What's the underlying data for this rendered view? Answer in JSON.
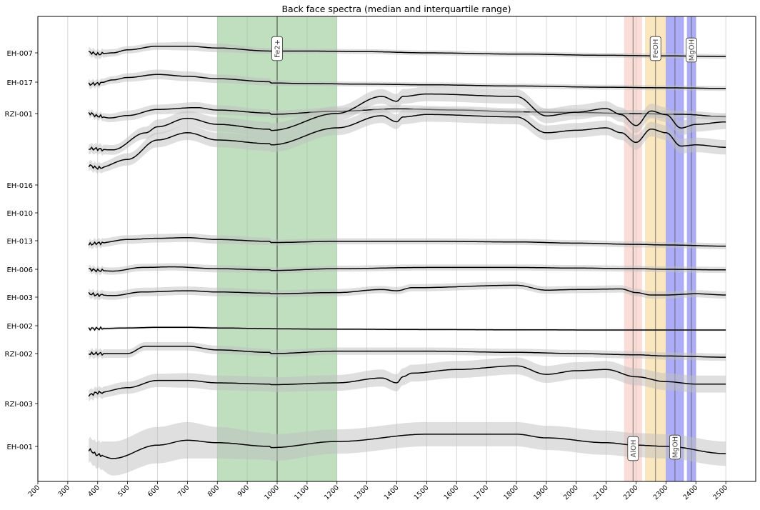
{
  "chart_data": {
    "type": "line",
    "title": "Back face spectra (median and interquartile range)",
    "xlabel": "",
    "ylabel": "",
    "xlim": [
      200,
      2600
    ],
    "xticks": [
      200,
      300,
      400,
      500,
      600,
      700,
      800,
      900,
      1000,
      1100,
      1200,
      1300,
      1400,
      1500,
      1600,
      1700,
      1800,
      1900,
      2000,
      2100,
      2200,
      2300,
      2400,
      2500
    ],
    "grid": "vertical",
    "colors": {
      "median": "#000000",
      "iqr_band": "#bfbfbf",
      "fe2_band": "#7fbf7f",
      "aloh_band": "#f7b3a8",
      "feoh_band": "#f7cf80",
      "mgoh_band": "#5a5af0"
    },
    "bands": [
      {
        "label": "Fe2+",
        "x0": 800,
        "x1": 1200,
        "line": 1000,
        "color": "#7fbf7f"
      },
      {
        "label": "AlOH",
        "x0": 2160,
        "x1": 2220,
        "line": 2190,
        "color": "#f7b3a8"
      },
      {
        "label": "FeOH",
        "x0": 2230,
        "x1": 2300,
        "line": 2265,
        "color": "#f7cf80"
      },
      {
        "label": "MgOH",
        "x0": 2300,
        "x1": 2360,
        "line": 2330,
        "color": "#5a5af0"
      },
      {
        "label": "MgOH",
        "x0": 2370,
        "x1": 2400,
        "line": 2385,
        "color": "#5a5af0"
      }
    ],
    "y_labels": [
      "EH-007",
      "EH-017",
      "RZI-001",
      "EH-016",
      "EH-010",
      "EH-013",
      "EH-006",
      "EH-003",
      "EH-002",
      "RZI-002",
      "RZI-003",
      "EH-001"
    ],
    "series": [
      {
        "name": "EH-007",
        "x": [
          370,
          400,
          450,
          500,
          600,
          700,
          800,
          975,
          980,
          1100,
          1300,
          1500,
          1800,
          2100,
          2300,
          2500
        ],
        "y": [
          0.05,
          -0.1,
          0.0,
          0.25,
          0.55,
          0.55,
          0.4,
          0.15,
          0.15,
          0.15,
          0.1,
          0.0,
          -0.1,
          -0.2,
          -0.25,
          -0.3
        ],
        "iqr": [
          0.35,
          0.35,
          0.3,
          0.3,
          0.3,
          0.35,
          0.35,
          0.25,
          0.25,
          0.2,
          0.2,
          0.2,
          0.2,
          0.2,
          0.2,
          0.2
        ]
      },
      {
        "name": "EH-017",
        "x": [
          370,
          400,
          450,
          500,
          600,
          700,
          800,
          975,
          980,
          1100,
          1300,
          1500,
          1800,
          2100,
          2300,
          2500
        ],
        "y": [
          -0.05,
          0.0,
          0.3,
          0.5,
          0.75,
          0.6,
          0.4,
          0.15,
          0.05,
          0.0,
          -0.05,
          -0.1,
          -0.2,
          -0.3,
          -0.35,
          -0.4
        ],
        "iqr": [
          0.35,
          0.3,
          0.3,
          0.35,
          0.4,
          0.4,
          0.35,
          0.3,
          0.25,
          0.2,
          0.2,
          0.2,
          0.2,
          0.2,
          0.2,
          0.2
        ]
      },
      {
        "name": "RZI-001",
        "x": [
          370,
          400,
          440,
          500,
          600,
          730,
          800,
          975,
          980,
          1200,
          1400,
          1600,
          1800,
          2000,
          2200,
          2350,
          2500
        ],
        "y": [
          0.1,
          -0.15,
          -0.3,
          -0.1,
          0.4,
          0.55,
          0.35,
          0.1,
          0.0,
          0.25,
          0.45,
          0.35,
          0.2,
          0.15,
          0.05,
          0.0,
          -0.2
        ],
        "iqr": [
          0.3,
          0.3,
          0.35,
          0.4,
          0.4,
          0.45,
          0.4,
          0.3,
          0.3,
          0.3,
          0.3,
          0.3,
          0.3,
          0.3,
          0.3,
          0.3,
          0.3
        ]
      },
      {
        "name": "EH-016",
        "x": [
          370,
          450,
          560,
          600,
          700,
          800,
          975,
          980,
          1200,
          1350,
          1400,
          1420,
          1500,
          1800,
          1900,
          2000,
          2100,
          2150,
          2200,
          2250,
          2300,
          2350,
          2400,
          2500
        ],
        "y": [
          -1.3,
          -1.4,
          0.0,
          0.5,
          1.2,
          0.7,
          0.3,
          0.2,
          1.6,
          3.0,
          2.6,
          3.0,
          3.2,
          3.0,
          1.4,
          1.7,
          2.0,
          1.5,
          0.6,
          1.8,
          1.5,
          0.4,
          0.7,
          0.9
        ],
        "iqr": [
          0.4,
          0.4,
          0.5,
          0.6,
          0.6,
          0.6,
          0.6,
          0.6,
          0.6,
          0.6,
          0.6,
          0.6,
          0.6,
          0.6,
          0.6,
          0.6,
          0.6,
          0.6,
          0.6,
          0.6,
          0.6,
          0.6,
          0.6,
          0.6
        ]
      },
      {
        "name": "EH-010",
        "x": [
          370,
          400,
          500,
          600,
          700,
          800,
          975,
          980,
          1200,
          1350,
          1400,
          1420,
          1500,
          1800,
          1900,
          2000,
          2100,
          2150,
          2200,
          2250,
          2300,
          2350,
          2400,
          2500
        ],
        "y": [
          -1.1,
          -1.3,
          -0.6,
          1.0,
          1.6,
          1.0,
          0.7,
          0.6,
          2.0,
          3.0,
          2.5,
          2.9,
          3.1,
          2.9,
          1.6,
          1.8,
          2.0,
          1.6,
          0.8,
          1.9,
          1.6,
          0.5,
          0.6,
          0.4
        ],
        "iqr": [
          0.4,
          0.4,
          0.5,
          0.6,
          0.6,
          0.6,
          0.6,
          0.6,
          0.6,
          0.6,
          0.6,
          0.6,
          0.6,
          0.6,
          0.6,
          0.6,
          0.6,
          0.6,
          0.6,
          0.6,
          0.6,
          0.6,
          0.6,
          0.6
        ]
      },
      {
        "name": "EH-013",
        "x": [
          370,
          400,
          500,
          600,
          700,
          800,
          975,
          980,
          1200,
          1500,
          1800,
          2000,
          2200,
          2300,
          2500
        ],
        "y": [
          -0.3,
          -0.2,
          0.1,
          0.2,
          0.25,
          0.1,
          -0.05,
          -0.15,
          -0.05,
          -0.05,
          -0.1,
          -0.2,
          -0.3,
          -0.35,
          -0.45
        ],
        "iqr": [
          0.35,
          0.35,
          0.35,
          0.35,
          0.35,
          0.35,
          0.3,
          0.25,
          0.25,
          0.25,
          0.25,
          0.25,
          0.25,
          0.25,
          0.25
        ]
      },
      {
        "name": "EH-006",
        "x": [
          370,
          400,
          450,
          550,
          650,
          800,
          975,
          980,
          1200,
          1500,
          1800,
          2000,
          2200,
          2300,
          2500
        ],
        "y": [
          0.0,
          -0.1,
          -0.15,
          0.15,
          0.2,
          0.05,
          -0.05,
          -0.1,
          0.05,
          0.15,
          0.15,
          0.1,
          0.05,
          0.0,
          -0.05
        ],
        "iqr": [
          0.3,
          0.3,
          0.3,
          0.3,
          0.3,
          0.3,
          0.25,
          0.25,
          0.25,
          0.25,
          0.25,
          0.25,
          0.25,
          0.25,
          0.25
        ]
      },
      {
        "name": "EH-003",
        "x": [
          370,
          400,
          450,
          550,
          700,
          800,
          975,
          980,
          1200,
          1350,
          1400,
          1450,
          1800,
          1900,
          2000,
          2150,
          2200,
          2250,
          2300,
          2400,
          2500
        ],
        "y": [
          0.1,
          0.0,
          -0.05,
          0.25,
          0.35,
          0.25,
          0.15,
          0.1,
          0.2,
          0.45,
          0.35,
          0.6,
          0.8,
          0.4,
          0.45,
          0.5,
          0.2,
          0.0,
          0.0,
          0.1,
          0.0
        ],
        "iqr": [
          0.35,
          0.35,
          0.35,
          0.35,
          0.35,
          0.35,
          0.3,
          0.3,
          0.3,
          0.3,
          0.3,
          0.3,
          0.3,
          0.3,
          0.3,
          0.3,
          0.3,
          0.3,
          0.3,
          0.3,
          0.3
        ]
      },
      {
        "name": "EH-002",
        "x": [
          370,
          400,
          500,
          600,
          700,
          800,
          975,
          980,
          1200,
          1500,
          1800,
          2100,
          2300,
          2500
        ],
        "y": [
          0.0,
          0.0,
          0.05,
          0.1,
          0.1,
          0.05,
          0.0,
          -0.02,
          -0.05,
          -0.08,
          -0.1,
          -0.12,
          -0.12,
          -0.12
        ],
        "iqr": [
          0.12,
          0.12,
          0.1,
          0.1,
          0.1,
          0.1,
          0.08,
          0.08,
          0.08,
          0.08,
          0.08,
          0.08,
          0.08,
          0.08
        ]
      },
      {
        "name": "RZI-002",
        "x": [
          370,
          400,
          500,
          560,
          700,
          800,
          975,
          980,
          1200,
          1500,
          1800,
          2000,
          2200,
          2300,
          2500
        ],
        "y": [
          0.0,
          0.0,
          0.0,
          0.6,
          0.6,
          0.3,
          0.1,
          0.0,
          0.2,
          0.2,
          0.1,
          0.0,
          -0.1,
          -0.2,
          -0.3
        ],
        "iqr": [
          0.35,
          0.35,
          0.35,
          0.35,
          0.35,
          0.35,
          0.3,
          0.3,
          0.3,
          0.3,
          0.3,
          0.3,
          0.3,
          0.3,
          0.3
        ]
      },
      {
        "name": "RZI-003",
        "x": [
          370,
          400,
          500,
          600,
          700,
          800,
          975,
          980,
          1200,
          1350,
          1400,
          1420,
          1450,
          1600,
          1800,
          1900,
          2000,
          2100,
          2200,
          2300,
          2400,
          2500
        ],
        "y": [
          0.0,
          0.2,
          0.6,
          1.2,
          1.2,
          1.0,
          0.9,
          0.85,
          1.0,
          1.4,
          1.0,
          1.5,
          1.8,
          2.1,
          2.4,
          1.7,
          2.0,
          2.1,
          1.5,
          1.1,
          0.9,
          0.9
        ],
        "iqr": [
          0.45,
          0.45,
          0.5,
          0.55,
          0.6,
          0.6,
          0.6,
          0.6,
          0.65,
          0.7,
          0.7,
          0.7,
          0.7,
          0.7,
          0.7,
          0.7,
          0.7,
          0.7,
          0.7,
          0.7,
          0.7,
          0.7
        ]
      },
      {
        "name": "EH-001",
        "x": [
          370,
          400,
          450,
          600,
          700,
          800,
          975,
          980,
          1200,
          1500,
          1800,
          1900,
          2100,
          2200,
          2300,
          2500
        ],
        "y": [
          0.0,
          -0.4,
          -0.7,
          0.4,
          0.8,
          0.6,
          0.3,
          0.2,
          0.7,
          1.3,
          1.3,
          1.0,
          0.6,
          0.4,
          0.3,
          -0.3
        ],
        "iqr": [
          1.0,
          1.1,
          1.4,
          1.5,
          1.5,
          1.3,
          1.1,
          1.1,
          1.0,
          1.0,
          1.0,
          1.0,
          1.0,
          1.0,
          1.0,
          1.0
        ]
      }
    ]
  }
}
